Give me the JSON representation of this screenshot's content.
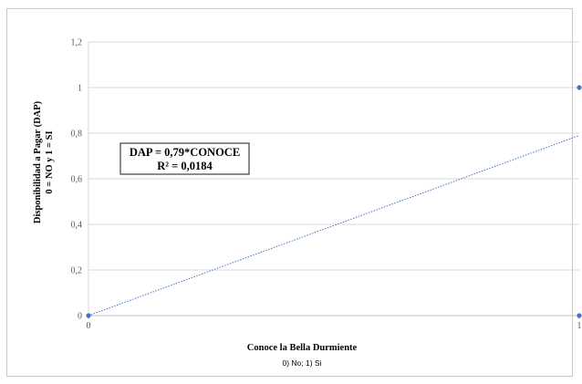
{
  "chart_data": {
    "type": "scatter",
    "ylabel_lines": [
      "Disponibilidad a Pagar (DAP)",
      "0 = NO y 1 = SI"
    ],
    "xlabel": "Conoce la Bella Durmiente",
    "xlabel_sub": "0) No; 1) Si",
    "xlim": [
      0,
      1
    ],
    "ylim": [
      0,
      1.2
    ],
    "x_ticks": [
      "0",
      "1"
    ],
    "y_ticks": [
      "0",
      "0,2",
      "0,4",
      "0,6",
      "0,8",
      "1",
      "1,2"
    ],
    "grid": true,
    "series": [
      {
        "points": [
          [
            0,
            0
          ],
          [
            1,
            1
          ],
          [
            1,
            0
          ]
        ],
        "color": "#4472c4"
      }
    ],
    "trendline": {
      "slope": 0.79,
      "intercept": 0,
      "color": "#4472c4",
      "style": "dotted"
    },
    "equation_lines": [
      "DAP = 0,79*CONOCE",
      "R² = 0,0184"
    ]
  }
}
